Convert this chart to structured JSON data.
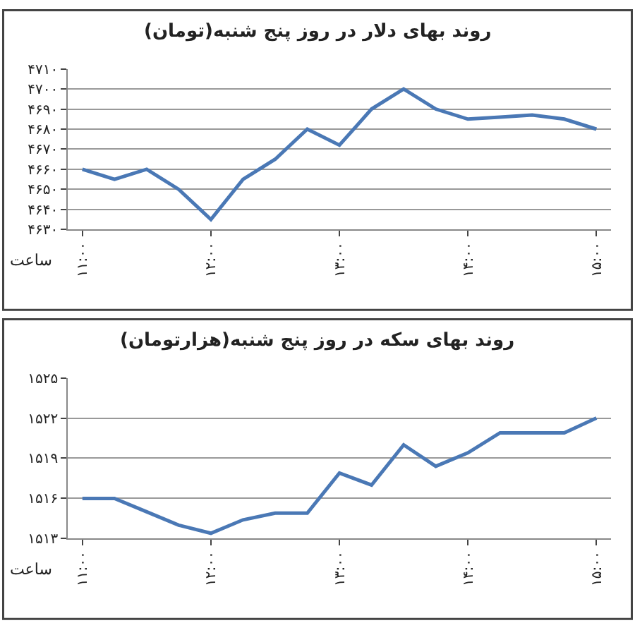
{
  "chart_data": [
    {
      "type": "line",
      "title": "روند بهای دلار در روز پنج شنبه(تومان)",
      "xlabel": "ساعت",
      "categories": [
        "۱۱:۰۰",
        null,
        null,
        null,
        "۱۲:۰۰",
        null,
        null,
        null,
        "۱۳:۰۰",
        null,
        null,
        null,
        "۱۴:۰۰",
        null,
        null,
        null,
        "۱۵:۰۰"
      ],
      "values": [
        4660,
        4655,
        4660,
        4650,
        4635,
        4655,
        4665,
        4680,
        4672,
        4690,
        4700,
        4690,
        4685,
        4686,
        4687,
        4685,
        4680
      ],
      "color": "#4a78b5",
      "ylim": [
        4630,
        4710
      ],
      "yticks": [
        {
          "value": 4630,
          "label": "۴۶۳۰"
        },
        {
          "value": 4640,
          "label": "۴۶۴۰"
        },
        {
          "value": 4650,
          "label": "۴۶۵۰"
        },
        {
          "value": 4660,
          "label": "۴۶۶۰"
        },
        {
          "value": 4670,
          "label": "۴۶۷۰"
        },
        {
          "value": 4680,
          "label": "۴۶۸۰"
        },
        {
          "value": 4690,
          "label": "۴۶۹۰"
        },
        {
          "value": 4700,
          "label": "۴۷۰۰"
        },
        {
          "value": 4710,
          "label": "۴۷۱۰"
        }
      ],
      "grid": "y"
    },
    {
      "type": "line",
      "title": "روند بهای سکه در روز پنج شنبه(هزارتومان)",
      "xlabel": "ساعت",
      "categories": [
        "۱۱:۰۰",
        null,
        null,
        null,
        "۱۲:۰۰",
        null,
        null,
        null,
        "۱۳:۰۰",
        null,
        null,
        null,
        "۱۴:۰۰",
        null,
        null,
        null,
        "۱۵:۰۰"
      ],
      "values": [
        1516,
        1516,
        1515,
        1514,
        1513.4,
        1514.4,
        1514.9,
        1514.9,
        1517.9,
        1517,
        1520,
        1518.4,
        1519.4,
        1520.9,
        1520.9,
        1520.9,
        1522
      ],
      "color": "#4a78b5",
      "ylim": [
        1513,
        1525
      ],
      "yticks": [
        {
          "value": 1513,
          "label": "۱۵۱۳"
        },
        {
          "value": 1516,
          "label": "۱۵۱۶"
        },
        {
          "value": 1519,
          "label": "۱۵۱۹"
        },
        {
          "value": 1522,
          "label": "۱۵۲۲"
        },
        {
          "value": 1525,
          "label": "۱۵۲۵"
        }
      ],
      "grid": "y"
    }
  ]
}
